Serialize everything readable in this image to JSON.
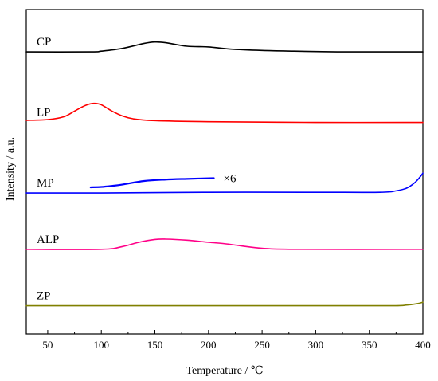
{
  "chart_data": {
    "type": "line",
    "xlabel": "Temperature / ℃",
    "ylabel": "Intensity / a.u.",
    "xlim": [
      30,
      400
    ],
    "xticks": [
      50,
      100,
      150,
      200,
      250,
      300,
      350,
      400
    ],
    "y_ticks_shown": false,
    "grid": false,
    "legend": "none",
    "series": [
      {
        "name": "CP",
        "color": "#000000",
        "baseline": 4.0,
        "points": [
          [
            30,
            0.0
          ],
          [
            90,
            0.0
          ],
          [
            100,
            0.01
          ],
          [
            120,
            0.05
          ],
          [
            140,
            0.12
          ],
          [
            150,
            0.14
          ],
          [
            160,
            0.13
          ],
          [
            180,
            0.08
          ],
          [
            200,
            0.07
          ],
          [
            220,
            0.04
          ],
          [
            250,
            0.02
          ],
          [
            280,
            0.01
          ],
          [
            320,
            0.0
          ],
          [
            360,
            0.0
          ],
          [
            400,
            0.0
          ]
        ]
      },
      {
        "name": "LP",
        "color": "#ff0000",
        "baseline": 3.0,
        "points": [
          [
            30,
            0.03
          ],
          [
            50,
            0.04
          ],
          [
            65,
            0.08
          ],
          [
            75,
            0.16
          ],
          [
            85,
            0.24
          ],
          [
            93,
            0.27
          ],
          [
            100,
            0.25
          ],
          [
            110,
            0.16
          ],
          [
            120,
            0.09
          ],
          [
            130,
            0.05
          ],
          [
            150,
            0.025
          ],
          [
            200,
            0.01
          ],
          [
            300,
            0.0
          ],
          [
            400,
            0.0
          ]
        ]
      },
      {
        "name": "MP",
        "color": "#0000ff",
        "baseline": 2.0,
        "points": [
          [
            30,
            0.0
          ],
          [
            100,
            0.0
          ],
          [
            200,
            0.01
          ],
          [
            300,
            0.01
          ],
          [
            360,
            0.01
          ],
          [
            375,
            0.03
          ],
          [
            385,
            0.07
          ],
          [
            392,
            0.14
          ],
          [
            397,
            0.22
          ],
          [
            400,
            0.28
          ]
        ]
      },
      {
        "name": "ALP",
        "color": "#ff0088",
        "baseline": 1.2,
        "points": [
          [
            30,
            0.0
          ],
          [
            100,
            0.0
          ],
          [
            120,
            0.04
          ],
          [
            135,
            0.1
          ],
          [
            150,
            0.14
          ],
          [
            160,
            0.145
          ],
          [
            180,
            0.13
          ],
          [
            200,
            0.1
          ],
          [
            215,
            0.08
          ],
          [
            230,
            0.05
          ],
          [
            250,
            0.015
          ],
          [
            280,
            0.0
          ],
          [
            400,
            0.0
          ]
        ]
      },
      {
        "name": "ZP",
        "color": "#808000",
        "baseline": 0.4,
        "points": [
          [
            30,
            0.0
          ],
          [
            100,
            0.0
          ],
          [
            200,
            0.0
          ],
          [
            300,
            0.0
          ],
          [
            370,
            0.0
          ],
          [
            385,
            0.01
          ],
          [
            395,
            0.03
          ],
          [
            400,
            0.05
          ]
        ]
      }
    ],
    "inset": {
      "label": "×6",
      "color": "#0000ff",
      "baseline": 2.0,
      "points": [
        [
          90,
          0.08
        ],
        [
          100,
          0.085
        ],
        [
          110,
          0.1
        ],
        [
          120,
          0.12
        ],
        [
          140,
          0.17
        ],
        [
          160,
          0.19
        ],
        [
          180,
          0.2
        ],
        [
          205,
          0.21
        ]
      ]
    }
  }
}
